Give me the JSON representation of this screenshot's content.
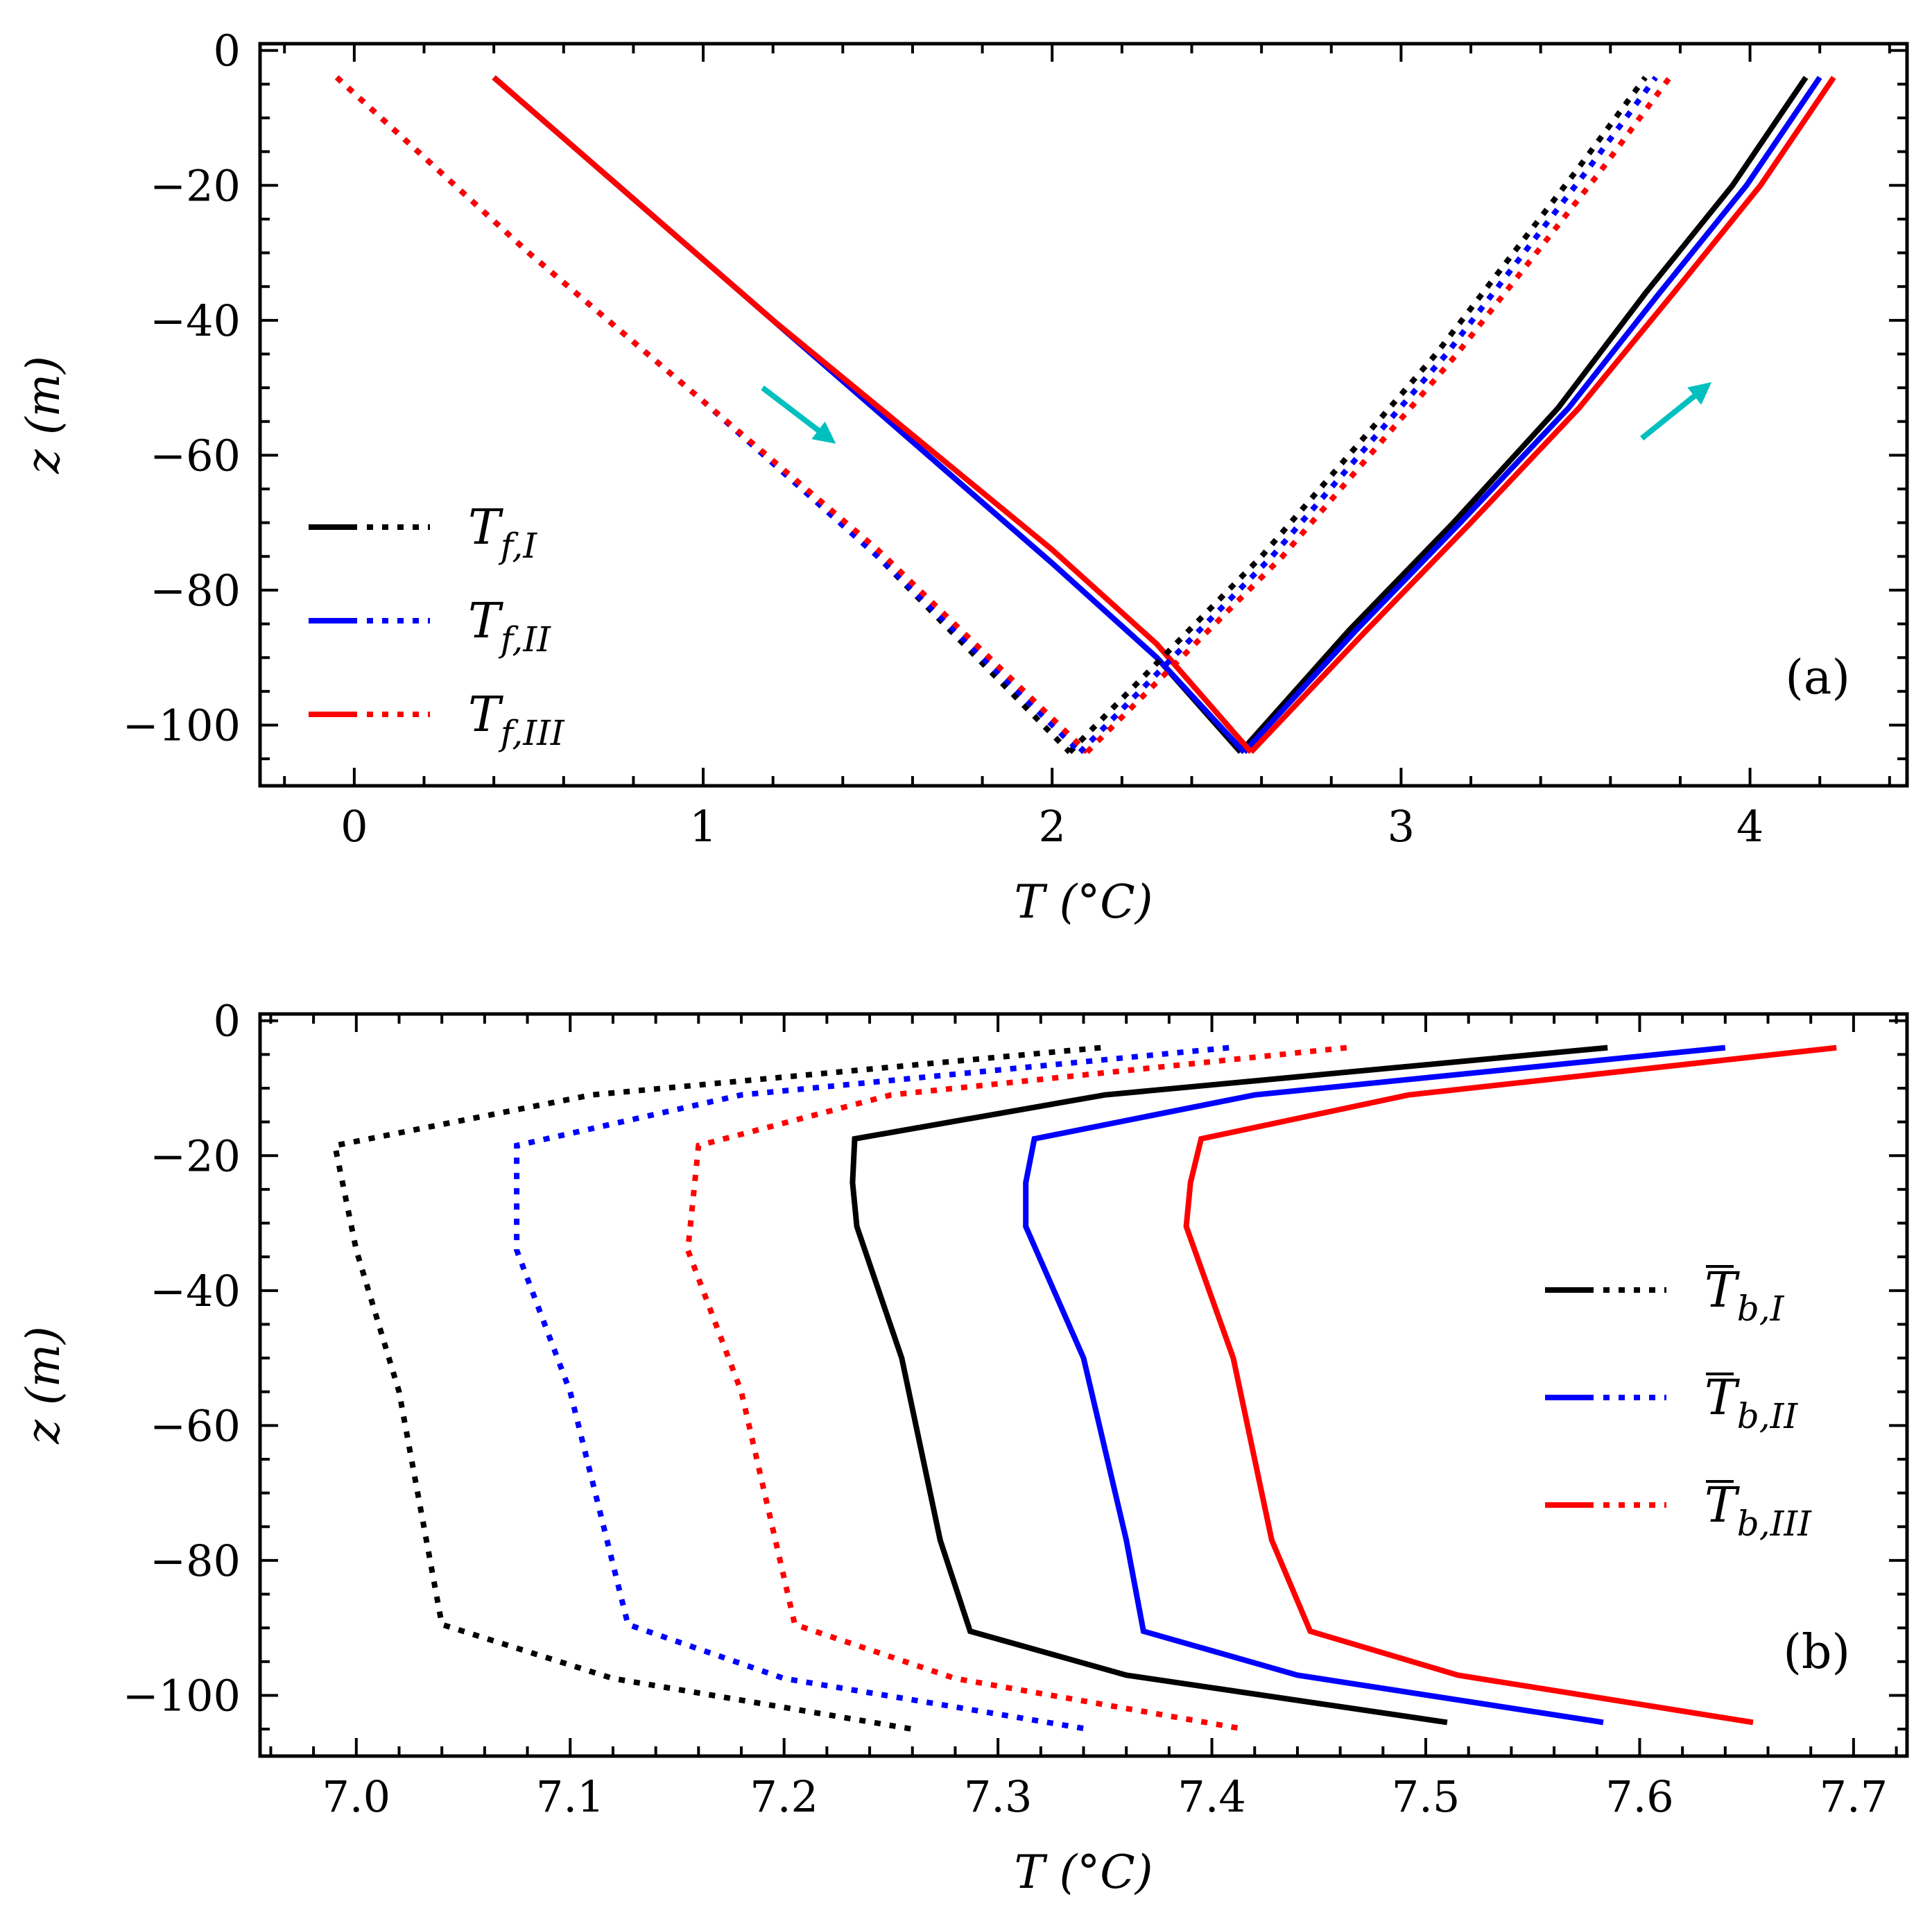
{
  "colors": {
    "I": "#000000",
    "II": "#0000ff",
    "III": "#ff0000",
    "arrow": "#00bfbf"
  },
  "chart_data": [
    {
      "id": "a",
      "type": "line",
      "panel_label": "(a)",
      "xlabel": "T (°C)",
      "ylabel": "z (m)",
      "xlim": [
        -0.27,
        4.45
      ],
      "ylim": [
        -109,
        1
      ],
      "xticks": [
        0,
        1,
        2,
        3,
        4
      ],
      "xtick_labels": [
        "0",
        "1",
        "2",
        "3",
        "4"
      ],
      "yticks": [
        0,
        -20,
        -40,
        -60,
        -80,
        -100
      ],
      "ytick_labels": [
        "0",
        "−20",
        "−40",
        "−60",
        "−80",
        "−100"
      ],
      "legend": {
        "position": "lower-left",
        "entries": [
          {
            "key": "I",
            "base": "T",
            "sub": "f,I"
          },
          {
            "key": "II",
            "base": "T",
            "sub": "f,II"
          },
          {
            "key": "III",
            "base": "T",
            "sub": "f,III"
          }
        ]
      },
      "series": [
        {
          "name": "T_f,I descending (solid)",
          "key": "I",
          "style": "solid",
          "points": [
            [
              0.4,
              -4
            ],
            [
              0.8,
              -22
            ],
            [
              1.2,
              -40
            ],
            [
              1.6,
              -58
            ],
            [
              2.0,
              -76
            ],
            [
              2.3,
              -90
            ],
            [
              2.54,
              -104
            ]
          ]
        },
        {
          "name": "T_f,I ascending (solid)",
          "key": "I",
          "style": "solid",
          "points": [
            [
              2.54,
              -104
            ],
            [
              2.85,
              -86
            ],
            [
              3.15,
              -70
            ],
            [
              3.45,
              -53
            ],
            [
              3.7,
              -36
            ],
            [
              3.95,
              -20
            ],
            [
              4.16,
              -4
            ]
          ]
        },
        {
          "name": "T_f,II descending (solid)",
          "key": "II",
          "style": "solid",
          "points": [
            [
              0.4,
              -4
            ],
            [
              0.8,
              -22
            ],
            [
              1.2,
              -40
            ],
            [
              1.6,
              -58
            ],
            [
              2.0,
              -76
            ],
            [
              2.3,
              -90
            ],
            [
              2.55,
              -104
            ]
          ]
        },
        {
          "name": "T_f,II ascending (solid)",
          "key": "II",
          "style": "solid",
          "points": [
            [
              2.55,
              -104
            ],
            [
              2.87,
              -86
            ],
            [
              3.17,
              -70
            ],
            [
              3.48,
              -53
            ],
            [
              3.74,
              -36
            ],
            [
              3.99,
              -20
            ],
            [
              4.2,
              -4
            ]
          ]
        },
        {
          "name": "T_f,III descending (solid)",
          "key": "III",
          "style": "solid",
          "points": [
            [
              0.4,
              -4
            ],
            [
              0.8,
              -22
            ],
            [
              1.2,
              -40
            ],
            [
              1.6,
              -57
            ],
            [
              2.0,
              -74
            ],
            [
              2.3,
              -88
            ],
            [
              2.57,
              -104
            ]
          ]
        },
        {
          "name": "T_f,III ascending (solid)",
          "key": "III",
          "style": "solid",
          "points": [
            [
              2.57,
              -104
            ],
            [
              2.9,
              -86
            ],
            [
              3.2,
              -70
            ],
            [
              3.51,
              -53
            ],
            [
              3.78,
              -36
            ],
            [
              4.03,
              -20
            ],
            [
              4.24,
              -4
            ]
          ]
        },
        {
          "name": "T_f,I descending (dotted)",
          "key": "I",
          "style": "dotted",
          "points": [
            [
              -0.05,
              -4
            ],
            [
              0.5,
              -30
            ],
            [
              1.0,
              -52
            ],
            [
              1.5,
              -75
            ],
            [
              2.05,
              -104
            ]
          ]
        },
        {
          "name": "T_f,I ascending (dotted)",
          "key": "I",
          "style": "dotted",
          "points": [
            [
              2.05,
              -104
            ],
            [
              2.6,
              -75
            ],
            [
              3.1,
              -45
            ],
            [
              3.5,
              -18
            ],
            [
              3.7,
              -4
            ]
          ]
        },
        {
          "name": "T_f,II descending (dotted)",
          "key": "II",
          "style": "dotted",
          "points": [
            [
              -0.05,
              -4
            ],
            [
              0.5,
              -30
            ],
            [
              1.0,
              -52
            ],
            [
              1.5,
              -75
            ],
            [
              2.08,
              -104
            ]
          ]
        },
        {
          "name": "T_f,II ascending (dotted)",
          "key": "II",
          "style": "dotted",
          "points": [
            [
              2.08,
              -104
            ],
            [
              2.63,
              -75
            ],
            [
              3.13,
              -45
            ],
            [
              3.53,
              -18
            ],
            [
              3.73,
              -4
            ]
          ]
        },
        {
          "name": "T_f,III descending (dotted)",
          "key": "III",
          "style": "dotted",
          "points": [
            [
              -0.05,
              -4
            ],
            [
              0.5,
              -30
            ],
            [
              1.0,
              -52
            ],
            [
              1.5,
              -74
            ],
            [
              2.1,
              -104
            ]
          ]
        },
        {
          "name": "T_f,III ascending (dotted)",
          "key": "III",
          "style": "dotted",
          "points": [
            [
              2.1,
              -104
            ],
            [
              2.66,
              -75
            ],
            [
              3.16,
              -45
            ],
            [
              3.57,
              -18
            ],
            [
              3.77,
              -4
            ]
          ]
        }
      ],
      "annotations": [
        {
          "type": "arrow",
          "from": [
            1.17,
            -50
          ],
          "to": [
            1.36,
            -57.5
          ]
        },
        {
          "type": "arrow",
          "from": [
            3.69,
            -57.5
          ],
          "to": [
            3.87,
            -50
          ]
        }
      ]
    },
    {
      "id": "b",
      "type": "line",
      "panel_label": "(b)",
      "xlabel": "T (°C)",
      "ylabel": "z (m)",
      "xlim": [
        6.955,
        7.725
      ],
      "ylim": [
        -109,
        1
      ],
      "xticks": [
        7.0,
        7.1,
        7.2,
        7.3,
        7.4,
        7.5,
        7.6,
        7.7
      ],
      "xtick_labels": [
        "7.0",
        "7.1",
        "7.2",
        "7.3",
        "7.4",
        "7.5",
        "7.6",
        "7.7"
      ],
      "yticks": [
        0,
        -20,
        -40,
        -60,
        -80,
        -100
      ],
      "ytick_labels": [
        "0",
        "−20",
        "−40",
        "−60",
        "−80",
        "−100"
      ],
      "legend": {
        "position": "center-right",
        "entries": [
          {
            "key": "I",
            "base": "T",
            "sub": "b,I",
            "overline": true
          },
          {
            "key": "II",
            "base": "T",
            "sub": "b,II",
            "overline": true
          },
          {
            "key": "III",
            "base": "T",
            "sub": "b,III",
            "overline": true
          }
        ]
      },
      "series": [
        {
          "name": "T̄_b,I (solid)",
          "key": "I",
          "style": "solid",
          "points": [
            [
              7.585,
              -4
            ],
            [
              7.35,
              -11
            ],
            [
              7.233,
              -17.5
            ],
            [
              7.232,
              -24
            ],
            [
              7.234,
              -30.5
            ],
            [
              7.255,
              -50
            ],
            [
              7.273,
              -77
            ],
            [
              7.287,
              -90.5
            ],
            [
              7.36,
              -97
            ],
            [
              7.51,
              -104
            ]
          ]
        },
        {
          "name": "T̄_b,II (solid)",
          "key": "II",
          "style": "solid",
          "points": [
            [
              7.64,
              -4
            ],
            [
              7.42,
              -11
            ],
            [
              7.317,
              -17.5
            ],
            [
              7.313,
              -24
            ],
            [
              7.313,
              -30.5
            ],
            [
              7.34,
              -50
            ],
            [
              7.36,
              -77
            ],
            [
              7.368,
              -90.5
            ],
            [
              7.44,
              -97
            ],
            [
              7.583,
              -104
            ]
          ]
        },
        {
          "name": "T̄_b,III (solid)",
          "key": "III",
          "style": "solid",
          "points": [
            [
              7.692,
              -4
            ],
            [
              7.492,
              -11
            ],
            [
              7.395,
              -17.5
            ],
            [
              7.39,
              -24
            ],
            [
              7.388,
              -30.5
            ],
            [
              7.41,
              -50
            ],
            [
              7.428,
              -77
            ],
            [
              7.446,
              -90.5
            ],
            [
              7.515,
              -97
            ],
            [
              7.653,
              -104
            ]
          ]
        },
        {
          "name": "T̄_b,I (dotted)",
          "key": "I",
          "style": "dotted",
          "points": [
            [
              7.348,
              -4
            ],
            [
              7.11,
              -11
            ],
            [
              6.99,
              -18.5
            ],
            [
              7.0,
              -34
            ],
            [
              7.02,
              -55
            ],
            [
              7.04,
              -89.5
            ],
            [
              7.12,
              -97.5
            ],
            [
              7.26,
              -105
            ]
          ]
        },
        {
          "name": "T̄_b,II (dotted)",
          "key": "II",
          "style": "dotted",
          "points": [
            [
              7.408,
              -4
            ],
            [
              7.18,
              -11
            ],
            [
              7.075,
              -18.5
            ],
            [
              7.075,
              -34
            ],
            [
              7.1,
              -55
            ],
            [
              7.127,
              -89.5
            ],
            [
              7.2,
              -97.5
            ],
            [
              7.342,
              -105
            ]
          ]
        },
        {
          "name": "T̄_b,III (dotted)",
          "key": "III",
          "style": "dotted",
          "points": [
            [
              7.463,
              -4
            ],
            [
              7.25,
              -11
            ],
            [
              7.16,
              -18.5
            ],
            [
              7.155,
              -34
            ],
            [
              7.18,
              -55
            ],
            [
              7.205,
              -89.5
            ],
            [
              7.28,
              -97.5
            ],
            [
              7.415,
              -105
            ]
          ]
        }
      ]
    }
  ]
}
